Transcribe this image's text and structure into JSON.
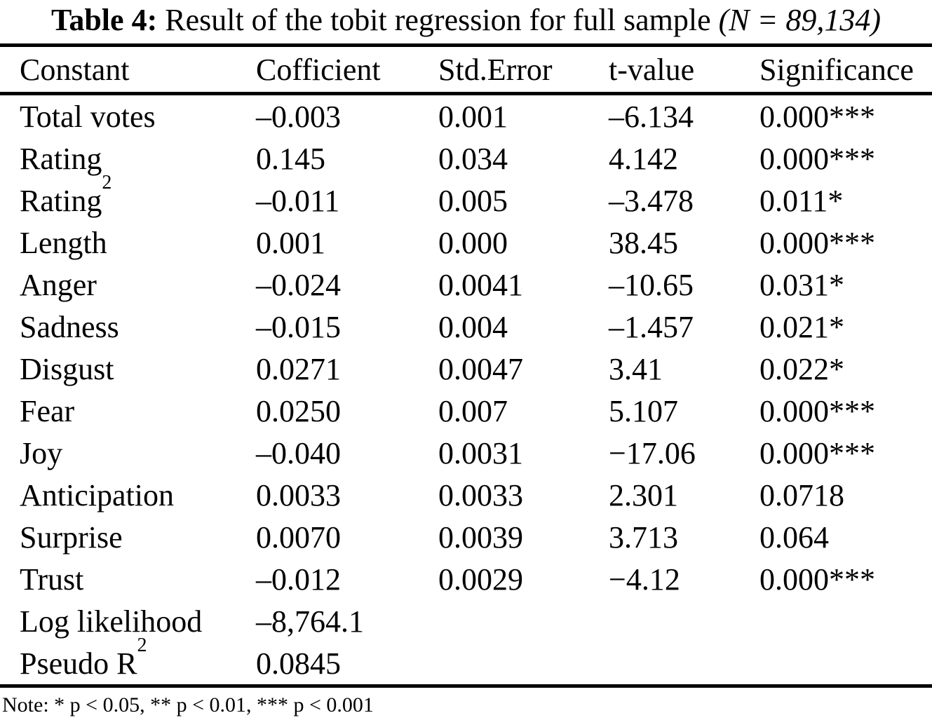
{
  "title": {
    "label": "Table 4:",
    "text": "Result of the tobit regression for full sample",
    "sample": "(N = 89,134)"
  },
  "table": {
    "columns": [
      "Constant",
      "Cofficient",
      "Std.Error",
      "t-value",
      "Significance"
    ],
    "rows": [
      {
        "label": "Total votes",
        "coefficient": "–0.003",
        "std_error": "0.001",
        "t_value": "–6.134",
        "significance": "0.000***"
      },
      {
        "label": "Rating",
        "coefficient": "0.145",
        "std_error": "0.034",
        "t_value": "4.142",
        "significance": "0.000***"
      },
      {
        "label": "Rating",
        "label_sup": "2",
        "coefficient": "–0.011",
        "std_error": "0.005",
        "t_value": "–3.478",
        "significance": "0.011*"
      },
      {
        "label": "Length",
        "coefficient": "0.001",
        "std_error": "0.000",
        "t_value": "38.45",
        "significance": "0.000***"
      },
      {
        "label": "Anger",
        "coefficient": "–0.024",
        "std_error": "0.0041",
        "t_value": "–10.65",
        "significance": "0.031*"
      },
      {
        "label": "Sadness",
        "coefficient": "–0.015",
        "std_error": "0.004",
        "t_value": "–1.457",
        "significance": "0.021*"
      },
      {
        "label": "Disgust",
        "coefficient": "0.0271",
        "std_error": "0.0047",
        "t_value": "3.41",
        "significance": "0.022*"
      },
      {
        "label": "Fear",
        "coefficient": "0.0250",
        "std_error": "0.007",
        "t_value": "5.107",
        "significance": "0.000***"
      },
      {
        "label": "Joy",
        "coefficient": "–0.040",
        "std_error": "0.0031",
        "t_value": "−17.06",
        "significance": "0.000***"
      },
      {
        "label": "Anticipation",
        "coefficient": "0.0033",
        "std_error": "0.0033",
        "t_value": "2.301",
        "significance": "0.0718"
      },
      {
        "label": "Surprise",
        "coefficient": "0.0070",
        "std_error": "0.0039",
        "t_value": "3.713",
        "significance": "0.064"
      },
      {
        "label": "Trust",
        "coefficient": "–0.012",
        "std_error": "0.0029",
        "t_value": "−4.12",
        "significance": "0.000***"
      },
      {
        "label": "Log likelihood",
        "coefficient": "–8,764.1"
      },
      {
        "label": "Pseudo R",
        "label_sup": "2",
        "coefficient": "0.0845"
      }
    ]
  },
  "note": "Note: * p < 0.05, ** p < 0.01, *** p < 0.001",
  "colors": {
    "text": "#000000",
    "background": "#ffffff",
    "rule": "#000000"
  }
}
